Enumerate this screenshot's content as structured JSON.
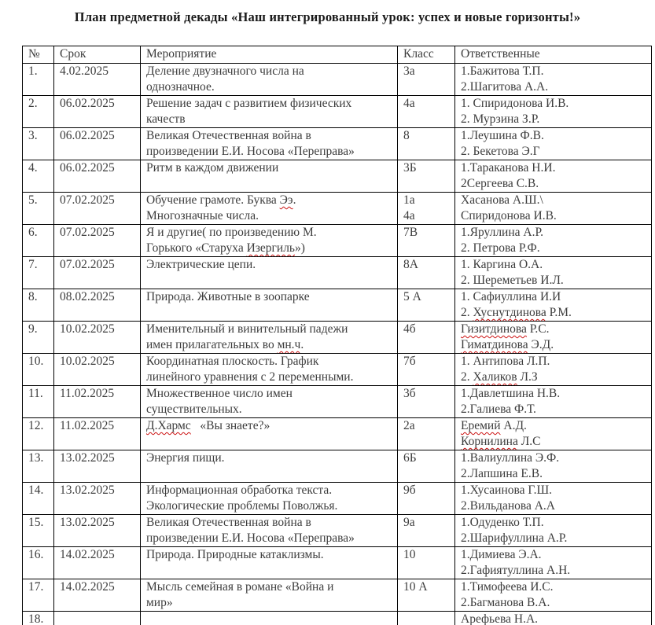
{
  "title": "План предметной декады «Наш интегрированный урок: успех и новые горизонты!»",
  "spellcheck_color": "#cc1111",
  "table": {
    "headers": [
      "№",
      "Срок",
      "Мероприятие",
      "Класс",
      "Ответственные"
    ],
    "rows": [
      {
        "num": "1.",
        "date": "4.02.2025",
        "event": [
          "Деление двузначного числа на",
          "однозначное."
        ],
        "klass": [
          "3а"
        ],
        "resp": [
          "1.Бажитова Т.П.",
          "2.Шагитова А.А."
        ]
      },
      {
        "num": "2.",
        "date": "06.02.2025",
        "event": [
          "Решение задач с развитием физических",
          "качеств"
        ],
        "klass": [
          "4а"
        ],
        "resp": [
          "1. Спиридонова И.В.",
          "2. Мурзина З.Р."
        ]
      },
      {
        "num": "3.",
        "date": "06.02.2025",
        "event": [
          "Великая Отечественная война в",
          "произведении Е.И. Носова «Переправа»"
        ],
        "klass": [
          "8"
        ],
        "resp": [
          "1.Леушина Ф.В.",
          "2. Бекетова Э.Г"
        ]
      },
      {
        "num": "4.",
        "date": "06.02.2025",
        "event": [
          "Ритм в каждом движении"
        ],
        "klass": [
          "3Б"
        ],
        "resp": [
          "1.Тараканова Н.И.",
          "2Сергеева С.В."
        ]
      },
      {
        "num": "5.",
        "date": "07.02.2025",
        "event": [
          "Обучение грамоте. Буква [[Ээ]].",
          "Многозначные числа."
        ],
        "klass": [
          "1а",
          "4а"
        ],
        "resp": [
          "Хасанова А.Ш.\\",
          "Спиридонова И.В."
        ]
      },
      {
        "num": "6.",
        "date": "07.02.2025",
        "event": [
          "Я и другие( по произведению М.",
          "Горького «Старуха [[Изергиль]]»)"
        ],
        "klass": [
          "7В"
        ],
        "resp": [
          "1.Яруллина А.Р.",
          "2. Петрова Р.Ф."
        ]
      },
      {
        "num": "7.",
        "date": "07.02.2025",
        "event": [
          "Электрические цепи."
        ],
        "klass": [
          "8А"
        ],
        "resp": [
          "1. Каргина О.А.",
          "2. Шереметьев И.Л."
        ]
      },
      {
        "num": "8.",
        "date": "08.02.2025",
        "event": [
          "Природа. Животные в зоопарке"
        ],
        "klass": [
          "5 А"
        ],
        "resp": [
          "1. Сафиуллина И.И",
          "2. [[Хуснутдинова]] Р.М."
        ]
      },
      {
        "num": "9.",
        "date": "10.02.2025",
        "event": [
          "Именительный и винительный падежи",
          "имен прилагательных во [[мн.ч]]."
        ],
        "klass": [
          "4б"
        ],
        "resp": [
          "[[Гизитдинова]] Р.С.",
          "[[Гиматдинова]] Э.Д."
        ]
      },
      {
        "num": "10.",
        "date": "10.02.2025",
        "event": [
          "Координатная плоскость. График",
          "линейного уравнения с 2 переменными."
        ],
        "klass": [
          "7б"
        ],
        "resp": [
          "1. Антипова Л.П.",
          "2. [[Халиков]] Л.З"
        ]
      },
      {
        "num": "11.",
        "date": "11.02.2025",
        "event": [
          "Множественное число имен",
          "существительных."
        ],
        "klass": [
          "3б"
        ],
        "resp": [
          "1.Давлетшина Н.В.",
          "2.Галиева Ф.Т."
        ]
      },
      {
        "num": "12.",
        "date": "11.02.2025",
        "event": [
          "[[Д.Хармс]]   «Вы знаете?»"
        ],
        "klass": [
          "2а"
        ],
        "resp": [
          "[[Еремий]] А.Д.",
          "[[Корнилина]] Л.С"
        ]
      },
      {
        "num": "13.",
        "date": "13.02.2025",
        "event": [
          "Энергия пищи."
        ],
        "klass": [
          "6Б"
        ],
        "resp": [
          "1.Валиуллина Э.Ф.",
          "2.Лапшина Е.В."
        ]
      },
      {
        "num": "14.",
        "date": "13.02.2025",
        "event": [
          "Информационная обработка текста.",
          "Экологические проблемы Поволжья."
        ],
        "klass": [
          "9б"
        ],
        "resp": [
          "1.Хусаинова Г.Ш.",
          "2.Вильданова А.А"
        ]
      },
      {
        "num": "15.",
        "date": "13.02.2025",
        "event": [
          "Великая Отечественная война в",
          "произведении Е.И. Носова «Переправа»"
        ],
        "klass": [
          "9а"
        ],
        "resp": [
          "1.Одуденко Т.П.",
          "2.Шарифуллина А.Р."
        ]
      },
      {
        "num": "16.",
        "date": "14.02.2025",
        "event": [
          "Природа. Природные катаклизмы."
        ],
        "klass": [
          "10"
        ],
        "resp": [
          "1.Димиева Э.А.",
          "2.Гафиятуллина А.Н."
        ]
      },
      {
        "num": "17.",
        "date": "14.02.2025",
        "event": [
          "Мысль семейная в романе «Война и",
          "мир»"
        ],
        "klass": [
          "10 А"
        ],
        "resp": [
          "1.Тимофеева И.С.",
          "2.Багманова В.А."
        ]
      },
      {
        "num": "18.",
        "date": "",
        "event": [],
        "klass": [],
        "resp": [
          "Арефьева Н.А."
        ]
      }
    ]
  }
}
